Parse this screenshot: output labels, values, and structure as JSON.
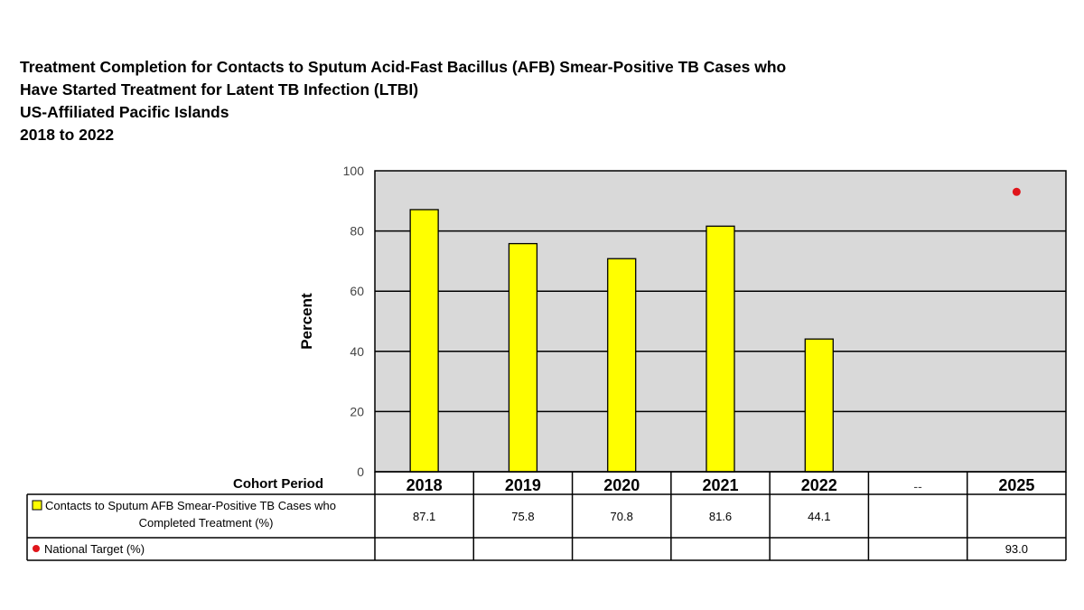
{
  "title_lines": [
    "Treatment Completion for Contacts to Sputum Acid-Fast Bacillus (AFB) Smear-Positive TB Cases who",
    "Have Started Treatment for Latent TB Infection (LTBI)",
    "US-Affiliated Pacific Islands",
    "2018 to 2022"
  ],
  "colors": {
    "plot_background": "#d9d9d9",
    "bar_fill": "#ffff00",
    "target_marker": "#e0151b",
    "grid": "#000000"
  },
  "chart_data": {
    "type": "bar",
    "title": "Treatment Completion for Contacts to Sputum Acid-Fast Bacillus (AFB) Smear-Positive TB Cases who Have Started Treatment for Latent TB Infection (LTBI) US-Affiliated Pacific Islands 2018 to 2022",
    "ylabel": "Percent",
    "xlabel": "Cohort Period",
    "ylim": [
      0,
      100
    ],
    "yticks": [
      "0",
      "20",
      "40",
      "60",
      "80",
      "100"
    ],
    "grid": true,
    "categories": [
      "2018",
      "2019",
      "2020",
      "2021",
      "2022",
      "--",
      "2025"
    ],
    "series": [
      {
        "name": "Contacts to Sputum AFB Smear-Positive TB Cases who Completed Treatment (%)",
        "name_lines": [
          "Contacts to Sputum AFB Smear-Positive TB Cases who",
          "Completed Treatment (%)"
        ],
        "kind": "bar",
        "values": [
          87.1,
          75.8,
          70.8,
          81.6,
          44.1,
          null,
          null
        ],
        "labels": [
          "87.1",
          "75.8",
          "70.8",
          "81.6",
          "44.1",
          "",
          ""
        ]
      },
      {
        "name": "National Target (%)",
        "kind": "point",
        "values": [
          null,
          null,
          null,
          null,
          null,
          null,
          93.0
        ],
        "labels": [
          "",
          "",
          "",
          "",
          "",
          "",
          "93.0"
        ]
      }
    ]
  }
}
